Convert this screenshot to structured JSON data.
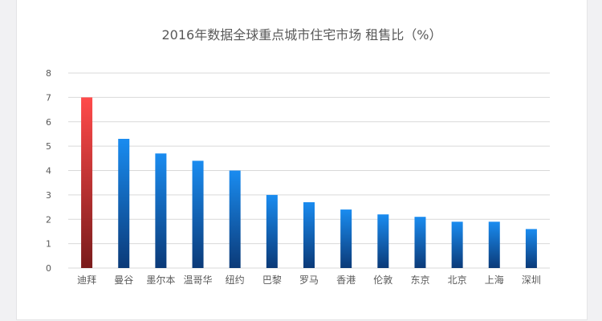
{
  "chart_data": {
    "type": "bar",
    "title": "2016年数据全球重点城市住宅市场 租售比（%）",
    "categories": [
      "迪拜",
      "曼谷",
      "墨尔本",
      "温哥华",
      "纽约",
      "巴黎",
      "罗马",
      "香港",
      "伦敦",
      "东京",
      "北京",
      "上海",
      "深圳"
    ],
    "values": [
      7.0,
      5.3,
      4.7,
      4.4,
      4.0,
      3.0,
      2.7,
      2.4,
      2.2,
      2.1,
      1.9,
      1.9,
      1.6
    ],
    "ylim": [
      0,
      8
    ],
    "yticks": [
      "0",
      "1",
      "2",
      "3",
      "4",
      "5",
      "6",
      "7",
      "8"
    ],
    "grid": true,
    "colors": {
      "highlight_top": "#ff4a4a",
      "highlight_bottom": "#7a1c1c",
      "bar_top": "#1a8cf0",
      "bar_bottom": "#0b3a78",
      "gridline": "#d9d9d9",
      "label": "#595959"
    }
  }
}
